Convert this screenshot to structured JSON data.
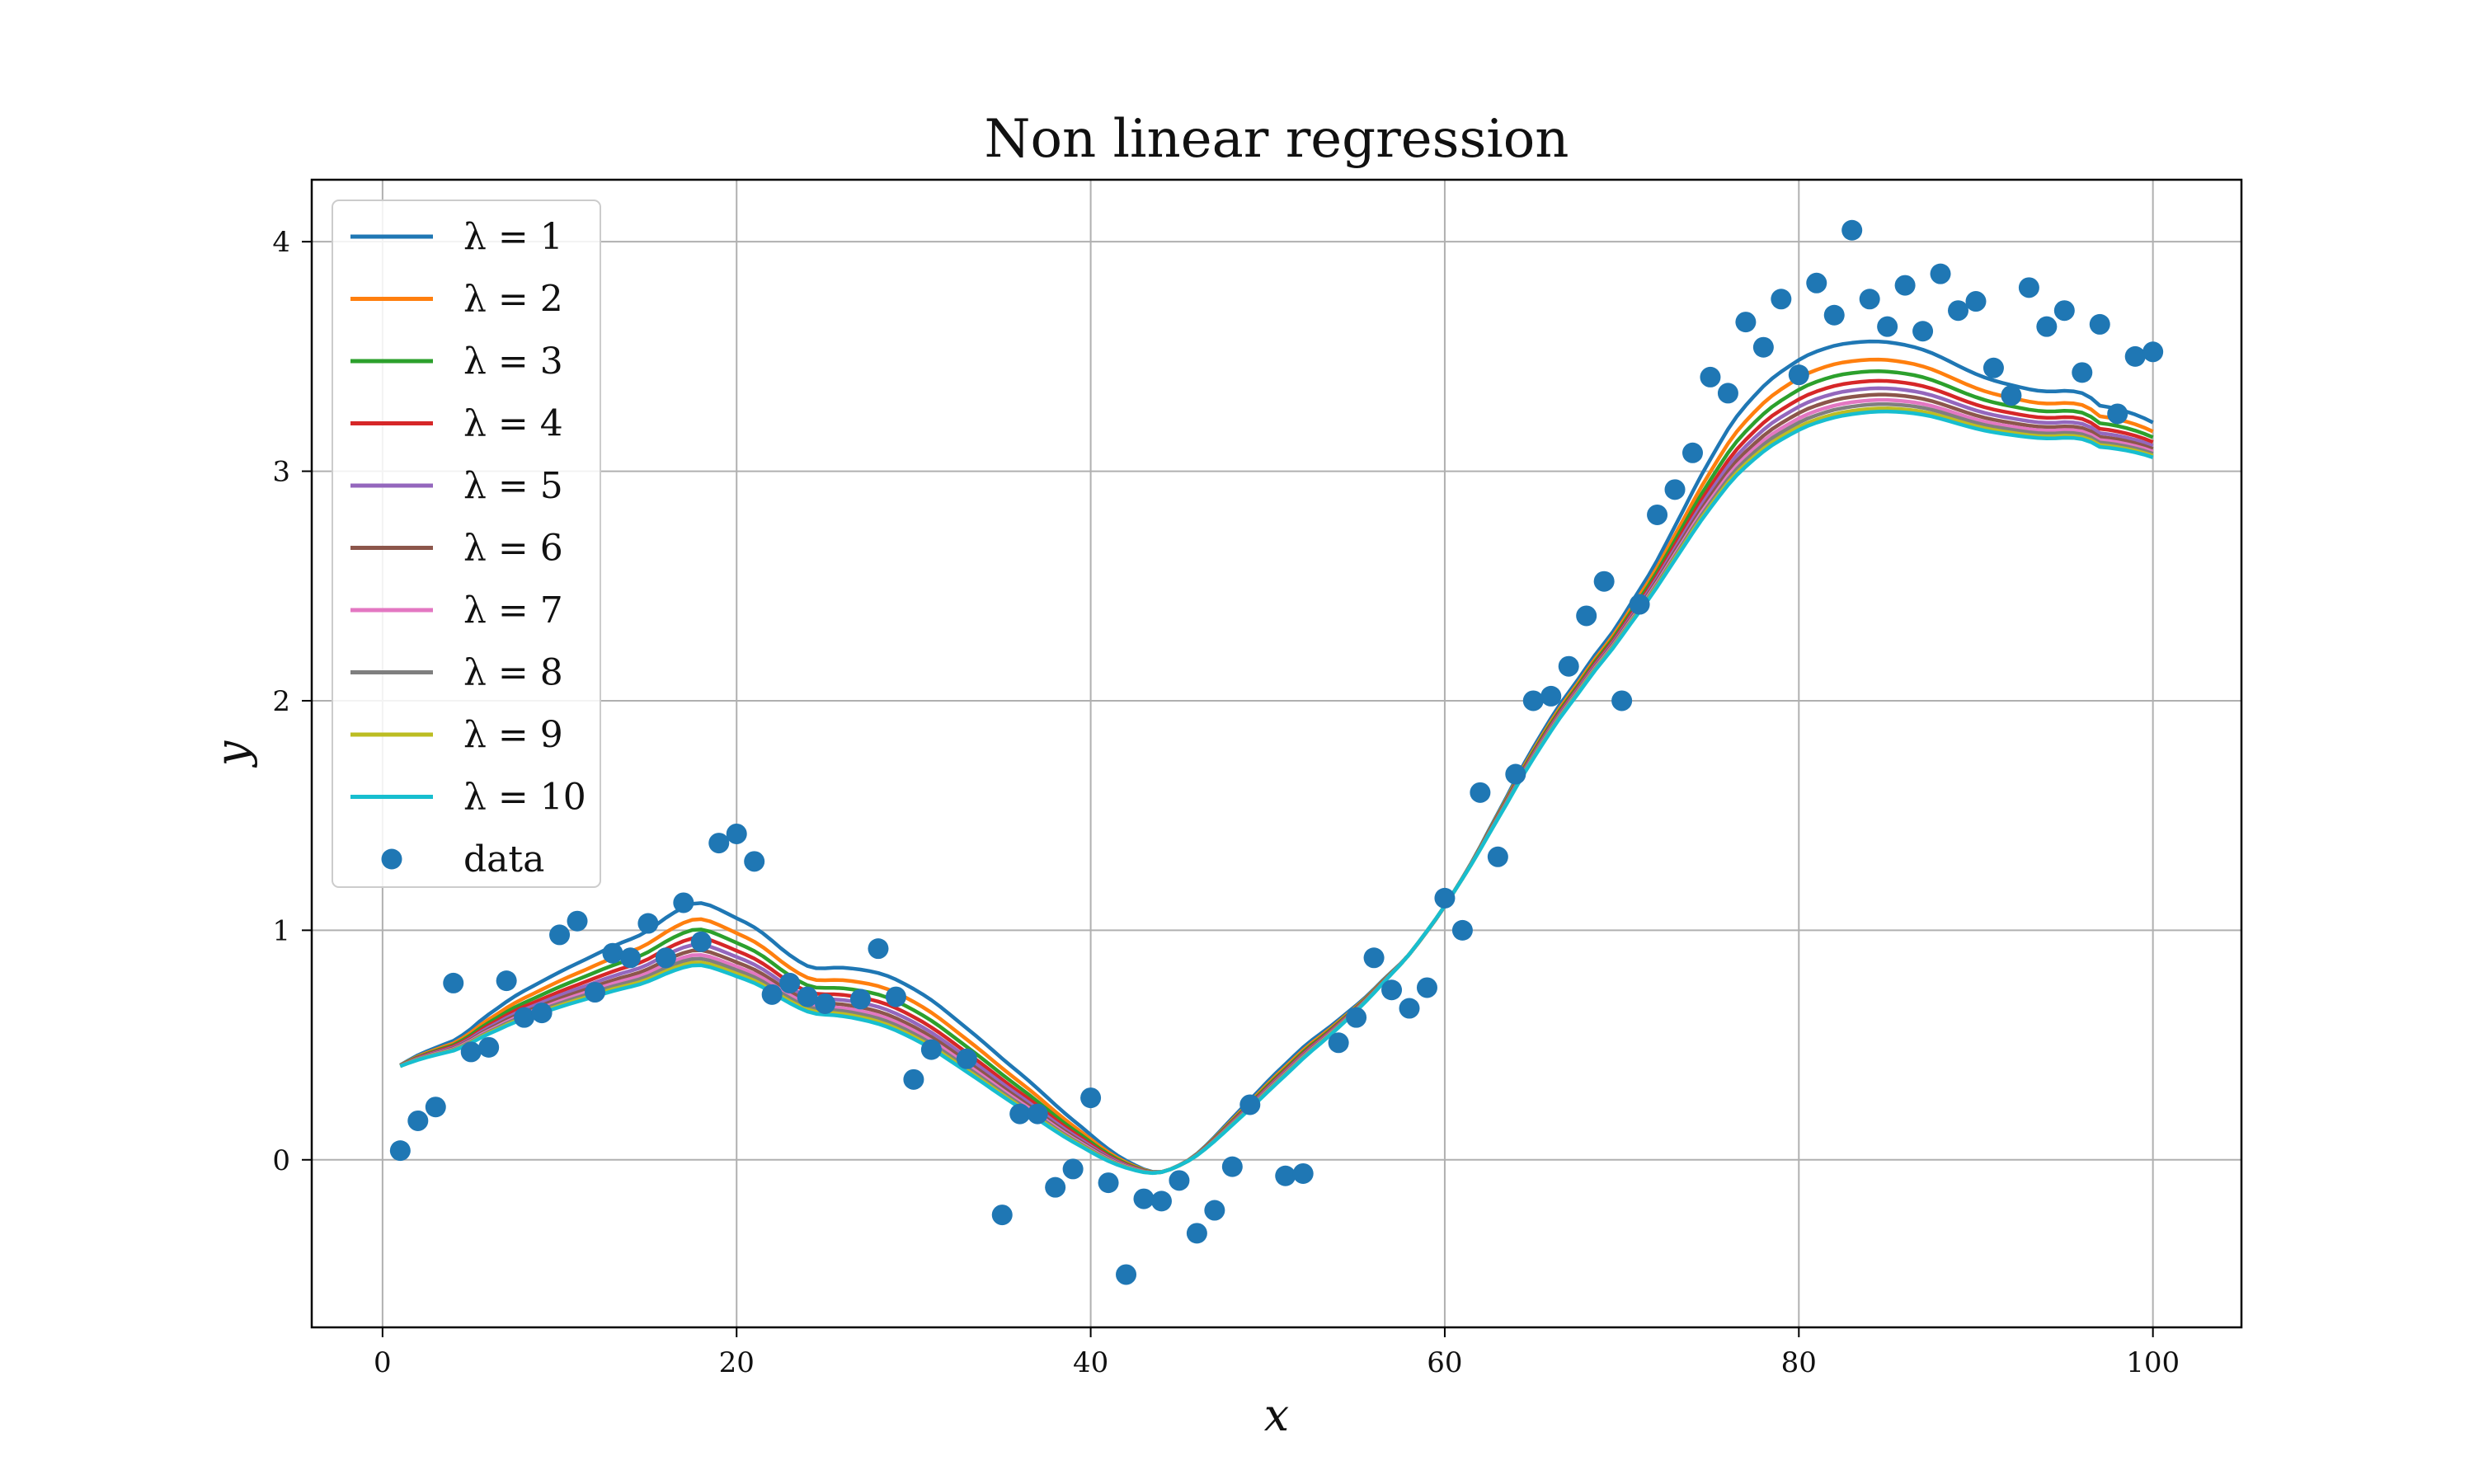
{
  "chart_data": {
    "type": "line",
    "title": "Non linear regression",
    "xlabel": "x",
    "ylabel": "y",
    "xlim": [
      -4,
      105
    ],
    "ylim": [
      -0.73,
      4.27
    ],
    "xticks": [
      "0",
      "20",
      "40",
      "60",
      "80",
      "100"
    ],
    "yticks": [
      "0",
      "1",
      "2",
      "3",
      "4"
    ],
    "grid": true,
    "legend_position": "upper-left",
    "colors": [
      "#1f77b4",
      "#ff7f0e",
      "#2ca02c",
      "#d62728",
      "#9467bd",
      "#8c564b",
      "#e377c2",
      "#7f7f7f",
      "#bcbd22",
      "#17becf"
    ],
    "scatter_color": "#1f77b4",
    "base_curve": {
      "x": [
        1,
        2,
        3,
        5,
        8,
        11,
        14,
        17,
        19,
        20,
        22,
        24,
        27,
        30,
        33,
        36,
        39,
        42,
        44,
        46,
        48,
        50,
        52,
        55,
        58,
        60,
        62,
        64,
        66,
        68,
        70,
        72,
        74,
        76,
        78,
        80,
        83,
        86,
        89,
        92,
        95,
        98,
        99,
        100
      ],
      "y": [
        0.4,
        0.3,
        0.45,
        0.62,
        0.72,
        0.88,
        0.95,
        1.06,
        1.28,
        1.22,
        0.78,
        0.82,
        0.88,
        0.75,
        0.6,
        0.35,
        0.2,
        -0.05,
        -0.12,
        -0.05,
        0.2,
        0.4,
        0.45,
        0.7,
        0.85,
        1.05,
        1.38,
        1.65,
        1.95,
        2.2,
        2.3,
        2.55,
        2.95,
        3.25,
        3.4,
        3.5,
        3.6,
        3.55,
        3.5,
        3.3,
        3.38,
        3.35,
        3.2,
        2.9
      ]
    },
    "series": [
      {
        "name": "λ = 1",
        "shrink": 0.0
      },
      {
        "name": "λ = 2",
        "shrink": 0.17
      },
      {
        "name": "λ = 3",
        "shrink": 0.28
      },
      {
        "name": "λ = 4",
        "shrink": 0.37
      },
      {
        "name": "λ = 5",
        "shrink": 0.44
      },
      {
        "name": "λ = 6",
        "shrink": 0.5
      },
      {
        "name": "λ = 7",
        "shrink": 0.55
      },
      {
        "name": "λ = 8",
        "shrink": 0.59
      },
      {
        "name": "λ = 9",
        "shrink": 0.63
      },
      {
        "name": "λ = 10",
        "shrink": 0.66
      }
    ],
    "scatter": {
      "name": "data",
      "points": [
        [
          1,
          0.04
        ],
        [
          2,
          0.17
        ],
        [
          3,
          0.23
        ],
        [
          4,
          0.77
        ],
        [
          5,
          0.47
        ],
        [
          6,
          0.49
        ],
        [
          7,
          0.78
        ],
        [
          8,
          0.62
        ],
        [
          9,
          0.64
        ],
        [
          10,
          0.98
        ],
        [
          11,
          1.04
        ],
        [
          12,
          0.73
        ],
        [
          13,
          0.9
        ],
        [
          14,
          0.88
        ],
        [
          15,
          1.03
        ],
        [
          16,
          0.88
        ],
        [
          17,
          1.12
        ],
        [
          18,
          0.95
        ],
        [
          19,
          1.38
        ],
        [
          20,
          1.42
        ],
        [
          21,
          1.3
        ],
        [
          22,
          0.72
        ],
        [
          23,
          0.77
        ],
        [
          24,
          0.71
        ],
        [
          25,
          0.68
        ],
        [
          27,
          0.7
        ],
        [
          28,
          0.92
        ],
        [
          29,
          0.71
        ],
        [
          30,
          0.35
        ],
        [
          31,
          0.48
        ],
        [
          33,
          0.44
        ],
        [
          35,
          -0.24
        ],
        [
          36,
          0.2
        ],
        [
          37,
          0.2
        ],
        [
          38,
          -0.12
        ],
        [
          39,
          -0.04
        ],
        [
          40,
          0.27
        ],
        [
          41,
          -0.1
        ],
        [
          42,
          -0.5
        ],
        [
          43,
          -0.17
        ],
        [
          44,
          -0.18
        ],
        [
          45,
          -0.09
        ],
        [
          46,
          -0.32
        ],
        [
          47,
          -0.22
        ],
        [
          48,
          -0.03
        ],
        [
          49,
          0.24
        ],
        [
          51,
          -0.07
        ],
        [
          52,
          -0.06
        ],
        [
          54,
          0.51
        ],
        [
          55,
          0.62
        ],
        [
          56,
          0.88
        ],
        [
          57,
          0.74
        ],
        [
          58,
          0.66
        ],
        [
          59,
          0.75
        ],
        [
          60,
          1.14
        ],
        [
          61,
          1.0
        ],
        [
          62,
          1.6
        ],
        [
          63,
          1.32
        ],
        [
          64,
          1.68
        ],
        [
          65,
          2.0
        ],
        [
          66,
          2.02
        ],
        [
          67,
          2.15
        ],
        [
          68,
          2.37
        ],
        [
          69,
          2.52
        ],
        [
          70,
          2.0
        ],
        [
          71,
          2.42
        ],
        [
          72,
          2.81
        ],
        [
          73,
          2.92
        ],
        [
          74,
          3.08
        ],
        [
          75,
          3.41
        ],
        [
          76,
          3.34
        ],
        [
          77,
          3.65
        ],
        [
          78,
          3.54
        ],
        [
          79,
          3.75
        ],
        [
          80,
          3.42
        ],
        [
          81,
          3.82
        ],
        [
          82,
          3.68
        ],
        [
          83,
          4.05
        ],
        [
          84,
          3.75
        ],
        [
          85,
          3.63
        ],
        [
          86,
          3.81
        ],
        [
          87,
          3.61
        ],
        [
          88,
          3.86
        ],
        [
          89,
          3.7
        ],
        [
          90,
          3.74
        ],
        [
          91,
          3.45
        ],
        [
          92,
          3.33
        ],
        [
          93,
          3.8
        ],
        [
          94,
          3.63
        ],
        [
          95,
          3.7
        ],
        [
          96,
          3.43
        ],
        [
          97,
          3.64
        ],
        [
          98,
          3.25
        ],
        [
          99,
          3.5
        ],
        [
          100,
          3.52
        ]
      ]
    }
  }
}
